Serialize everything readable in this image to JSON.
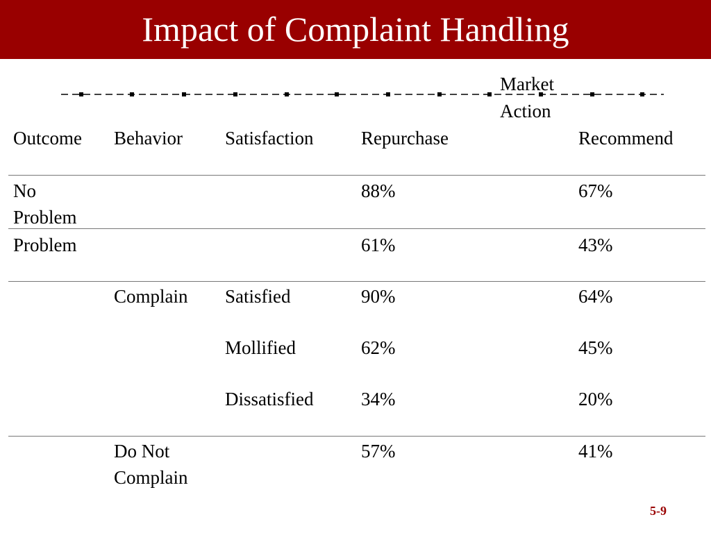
{
  "slide": {
    "title": "Impact of Complaint Handling",
    "page_number": "5-9",
    "accent_color": "#990000"
  },
  "table": {
    "market_action_label": [
      "Market",
      "Action"
    ],
    "headers": [
      "Outcome",
      "Behavior",
      "Satisfaction",
      "Repurchase",
      "Recommend"
    ],
    "rows": [
      {
        "outcome": [
          "No",
          "Problem"
        ],
        "behavior": "",
        "satisfaction": "",
        "repurchase": "88%",
        "recommend": "67%"
      },
      {
        "outcome": [
          "Problem"
        ],
        "behavior": "",
        "satisfaction": "",
        "repurchase": "61%",
        "recommend": "43%"
      },
      {
        "outcome": [
          ""
        ],
        "behavior": "Complain",
        "satisfaction": "Satisfied",
        "repurchase": "90%",
        "recommend": "64%"
      },
      {
        "outcome": [
          ""
        ],
        "behavior": "",
        "satisfaction": "Mollified",
        "repurchase": "62%",
        "recommend": "45%"
      },
      {
        "outcome": [
          ""
        ],
        "behavior": "",
        "satisfaction": "Dissatisfied",
        "repurchase": "34%",
        "recommend": "20%"
      },
      {
        "outcome": [
          ""
        ],
        "behavior": [
          "Do Not",
          "Complain"
        ],
        "satisfaction": "",
        "repurchase": "57%",
        "recommend": "41%"
      }
    ]
  }
}
